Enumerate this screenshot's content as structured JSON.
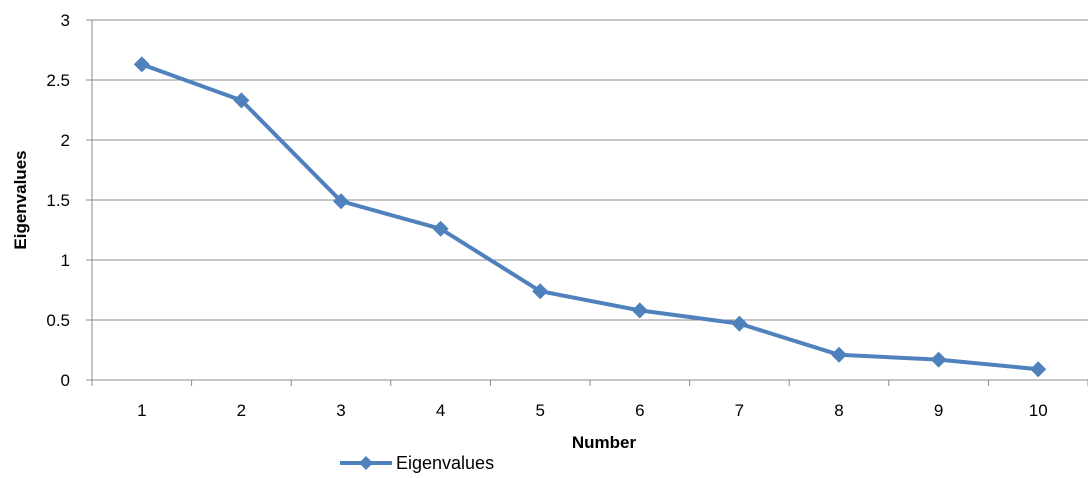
{
  "chart_data": {
    "type": "line",
    "title": "",
    "xlabel": "Number",
    "ylabel": "Eigenvalues",
    "categories": [
      "1",
      "2",
      "3",
      "4",
      "5",
      "6",
      "7",
      "8",
      "9",
      "10"
    ],
    "series": [
      {
        "name": "Eigenvalues",
        "values": [
          2.63,
          2.33,
          1.49,
          1.26,
          0.74,
          0.58,
          0.47,
          0.21,
          0.17,
          0.09
        ],
        "color": "#4f81bd",
        "marker": "diamond"
      }
    ],
    "ylim": [
      0,
      3
    ],
    "yticks": [
      "0",
      "0.5",
      "1",
      "1.5",
      "2",
      "2.5",
      "3"
    ],
    "grid": true,
    "legend": "bottom-left",
    "colors": {
      "grid": "#8c8c8c",
      "axis": "#8c8c8c"
    }
  }
}
